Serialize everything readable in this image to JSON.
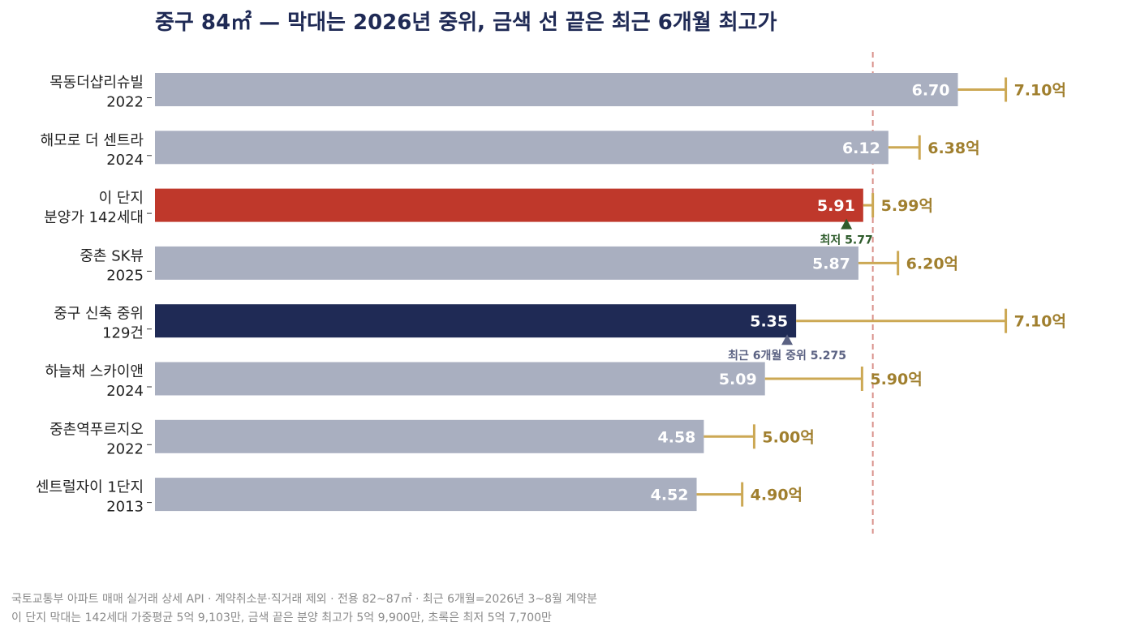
{
  "chart_data": {
    "type": "bar",
    "orientation": "horizontal",
    "title": "중구 84㎡ — 막대는 2026년 중위, 금색 선 끝은 최근 6개월 최고가",
    "unit_suffix": "억",
    "xlim": [
      0,
      7.4
    ],
    "categories": [
      {
        "name": "목동더샵리슈빌",
        "sub": "2022"
      },
      {
        "name": "해모로 더 센트라",
        "sub": "2024"
      },
      {
        "name": "이 단지",
        "sub": "분양가 142세대"
      },
      {
        "name": "중촌 SK뷰",
        "sub": "2025"
      },
      {
        "name": "중구 신축 중위",
        "sub": "129건"
      },
      {
        "name": "하늘채 스카이앤",
        "sub": "2024"
      },
      {
        "name": "중촌역푸르지오",
        "sub": "2022"
      },
      {
        "name": "센트럴자이 1단지",
        "sub": "2013"
      }
    ],
    "series": [
      {
        "values": [
          6.7,
          6.12,
          5.91,
          5.87,
          5.35,
          5.09,
          4.58,
          4.52
        ],
        "labels": [
          "6.70",
          "6.12",
          "5.91",
          "5.87",
          "5.35",
          "5.09",
          "4.58",
          "4.52"
        ]
      },
      {
        "values": [
          7.1,
          6.38,
          5.99,
          6.2,
          7.1,
          5.9,
          5.0,
          4.9
        ],
        "labels": [
          "7.10억",
          "6.38억",
          "5.99억",
          "6.20억",
          "7.10억",
          "5.90억",
          "5.00억",
          "4.90억"
        ]
      }
    ],
    "reference_line": {
      "value": 5.99
    },
    "annotations": [
      {
        "category_index": 2,
        "value": 5.77,
        "text": "최저 5.77"
      },
      {
        "category_index": 4,
        "value": 5.275,
        "text": "최근 6개월 중위 5.275"
      }
    ],
    "grid": false
  },
  "colors": {
    "bar_default": "#a9afc0",
    "bar_highlight": "#bf382b",
    "bar_median": "#1f2a55",
    "whisker": "#cca854",
    "whisker_label": "#a07f2e",
    "reference_line": "#d9908a",
    "marker_green": "#2f5c2c",
    "marker_grey": "#5b6283"
  },
  "footnotes": [
    "국토교통부 아파트 매매 실거래 상세 API · 계약취소분·직거래 제외 · 전용 82~87㎡ · 최근 6개월=2026년 3~8월 계약분",
    "이 단지 막대는 142세대 가중평균 5억 9,103만, 금색 끝은 분양 최고가 5억 9,900만, 초록은 최저 5억 7,700만"
  ]
}
